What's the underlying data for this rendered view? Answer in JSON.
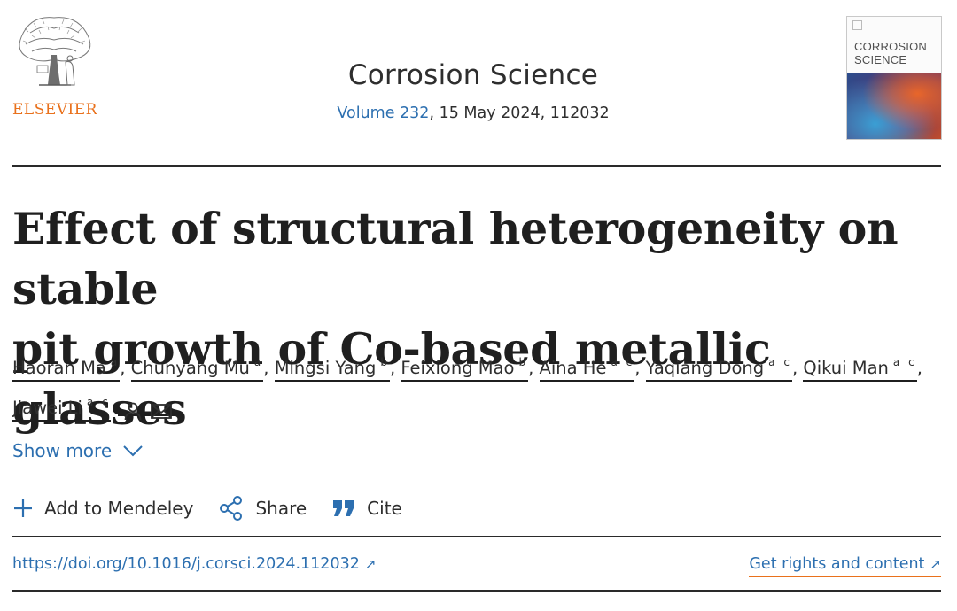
{
  "header": {
    "publisher": "ELSEVIER",
    "journal": "Corrosion Science",
    "volume_link": "Volume 232",
    "issue_rest": ", 15 May 2024, 112032",
    "cover_title_line1": "CORROSION",
    "cover_title_line2": "SCIENCE"
  },
  "article": {
    "title_line1": "Effect of structural heterogeneity on stable",
    "title_line2": "pit growth of Co-based metallic glasses"
  },
  "authors": [
    {
      "name": "Haoran Ma",
      "aff": "a"
    },
    {
      "name": "Chunyang Mu",
      "aff": "a"
    },
    {
      "name": "Mingsi Yang",
      "aff": "b"
    },
    {
      "name": "Feixiong Mao",
      "aff": "b"
    },
    {
      "name": "Aina He",
      "aff": "a c"
    },
    {
      "name": "Yaqiang Dong",
      "aff": "a c"
    },
    {
      "name": "Qikui Man",
      "aff": "a c"
    },
    {
      "name": "Jiawei Li",
      "aff": "a c"
    }
  ],
  "show_more": "Show more",
  "actions": {
    "mendeley": "Add to Mendeley",
    "share": "Share",
    "cite": "Cite"
  },
  "links": {
    "doi": "https://doi.org/10.1016/j.corsci.2024.112032",
    "rights": "Get rights and content",
    "arrow": "↗"
  },
  "colors": {
    "link": "#2c6fb0",
    "elsevier_orange": "#e9711c",
    "text": "#2e2e2e"
  }
}
